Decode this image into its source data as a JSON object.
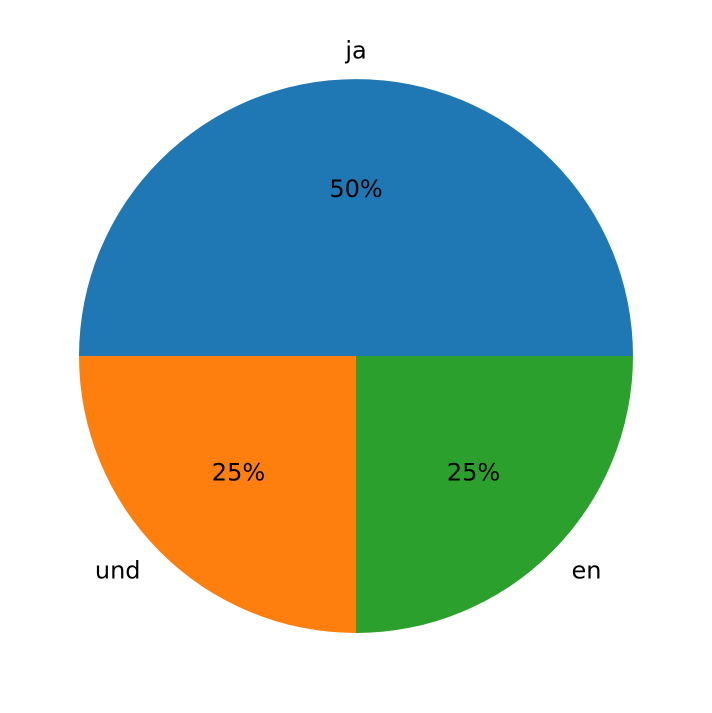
{
  "chart_data": {
    "type": "pie",
    "categories": [
      "ja",
      "und",
      "en"
    ],
    "values": [
      50,
      25,
      25
    ],
    "value_labels": [
      "50%",
      "25%",
      "25%"
    ],
    "colors": [
      "#1f77b4",
      "#ff7f0e",
      "#2ca02c"
    ]
  }
}
